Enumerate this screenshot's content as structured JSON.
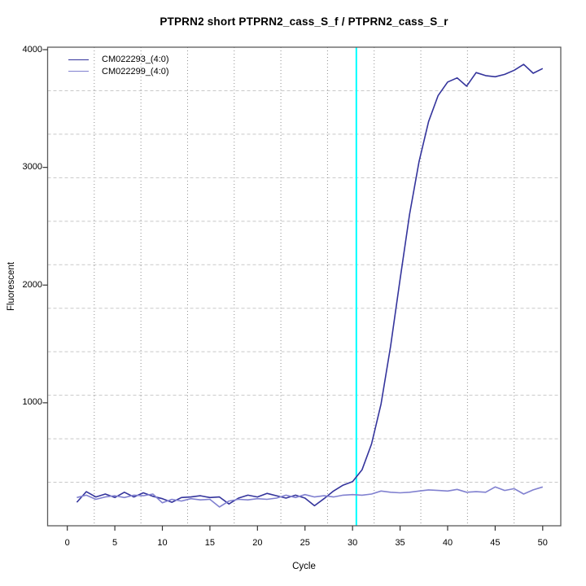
{
  "chart_data": {
    "type": "line",
    "title": "PTPRN2 short PTPRN2_cass_S_f / PTPRN2_cass_S_r",
    "xlabel": "Cycle",
    "ylabel": "Fluorescent",
    "x_start_cycle": 1,
    "x_ticks": [
      0,
      5,
      10,
      15,
      20,
      25,
      30,
      35,
      40,
      45,
      50
    ],
    "y_ticks": [
      1000,
      2000,
      3000,
      4000
    ],
    "xlim": [
      -2.07,
      51.9
    ],
    "ylim": [
      -45,
      4021
    ],
    "grid": {
      "divisions": 11,
      "vertical_style": "dotted",
      "horizontal_style": "dashed"
    },
    "threshold_line": {
      "x": 30.4,
      "color": "#00ffff"
    },
    "legend_position": "top-left",
    "series": [
      {
        "name": "CM022293_(4:0)",
        "color": "#34349c",
        "values": [
          155,
          245,
          200,
          225,
          195,
          240,
          200,
          235,
          205,
          185,
          155,
          195,
          200,
          210,
          195,
          200,
          140,
          190,
          215,
          200,
          230,
          210,
          190,
          215,
          190,
          125,
          185,
          250,
          300,
          330,
          430,
          650,
          990,
          1480,
          2050,
          2600,
          3050,
          3390,
          3610,
          3725,
          3760,
          3690,
          3805,
          3780,
          3770,
          3790,
          3825,
          3875,
          3800,
          3840
        ]
      },
      {
        "name": "CM022299_(4:0)",
        "color": "#8181d0",
        "values": [
          195,
          215,
          180,
          200,
          210,
          195,
          215,
          210,
          225,
          150,
          180,
          165,
          185,
          175,
          180,
          115,
          165,
          180,
          175,
          185,
          180,
          190,
          215,
          195,
          220,
          200,
          210,
          200,
          215,
          220,
          215,
          225,
          250,
          240,
          235,
          240,
          250,
          260,
          255,
          250,
          264,
          240,
          245,
          240,
          285,
          255,
          270,
          225,
          260,
          285
        ]
      }
    ],
    "colors": {
      "box_border": "#5a5a5a",
      "grid_vertical": "#8f8f8f",
      "grid_horizontal": "#c8c8c8",
      "tick": "#333333"
    }
  }
}
